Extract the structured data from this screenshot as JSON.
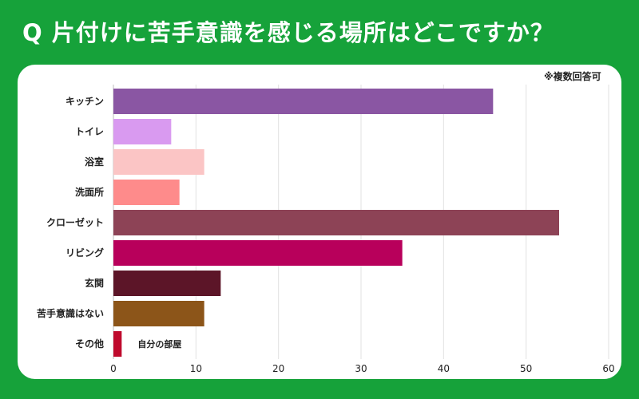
{
  "header": {
    "title": "Q 片付けに苦手意識を感じる場所はどこですか？"
  },
  "chart_note": "※複数回答可",
  "chart_data": {
    "type": "bar",
    "orientation": "horizontal",
    "title": "Q 片付けに苦手意識を感じる場所はどこですか？",
    "categories": [
      "キッチン",
      "トイレ",
      "浴室",
      "洗面所",
      "クローゼット",
      "リビング",
      "玄関",
      "苦手意識はない",
      "その他"
    ],
    "values": [
      46,
      7,
      11,
      8,
      54,
      35,
      13,
      11,
      1
    ],
    "colors": [
      "#8a56a3",
      "#d99af0",
      "#fbc5c5",
      "#fe8b8b",
      "#8d4356",
      "#b8005b",
      "#5c1528",
      "#8c5519",
      "#bf0a2d"
    ],
    "xlim": [
      0,
      60
    ],
    "x_ticks": [
      0,
      10,
      20,
      30,
      40,
      50,
      60
    ],
    "grid": true,
    "legend": "none",
    "annotations": [
      {
        "category": "その他",
        "text": "自分の部屋"
      }
    ]
  }
}
